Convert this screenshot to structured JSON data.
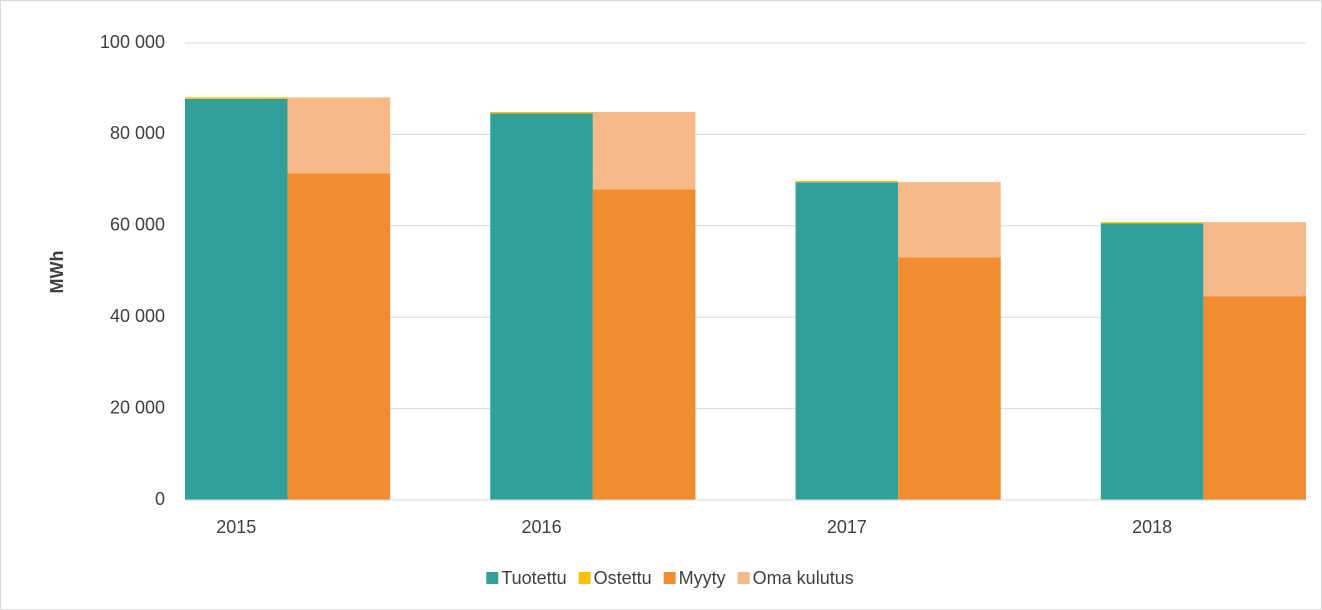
{
  "chart_data": {
    "type": "stacked_bar",
    "y_label": "MWh",
    "categories": [
      "2015",
      "2016",
      "2017",
      "2018"
    ],
    "series": [
      {
        "name": "Tuotettu",
        "color": "#31a09a",
        "stack": "left",
        "values": [
          87800,
          84600,
          69500,
          60500
        ]
      },
      {
        "name": "Ostettu",
        "color": "#ffc000",
        "stack": "left",
        "values": [
          300,
          300,
          300,
          300
        ]
      },
      {
        "name": "Myyty",
        "color": "#f28c30",
        "stack": "right",
        "values": [
          71500,
          68000,
          53100,
          44600
        ]
      },
      {
        "name": "Oma kulutus",
        "color": "#f7b987",
        "stack": "right",
        "values": [
          16600,
          16900,
          16500,
          16200
        ]
      }
    ],
    "ylim": [
      0,
      100000
    ],
    "yticks": [
      0,
      {
        "value": 20000,
        "label": "20 000"
      },
      {
        "value": 40000,
        "label": "40 000"
      },
      {
        "value": 60000,
        "label": "60 000"
      },
      {
        "value": 80000,
        "label": "80 000"
      },
      {
        "value": 100000,
        "label": "100 000"
      }
    ],
    "grid": true,
    "legend": "bottom"
  }
}
